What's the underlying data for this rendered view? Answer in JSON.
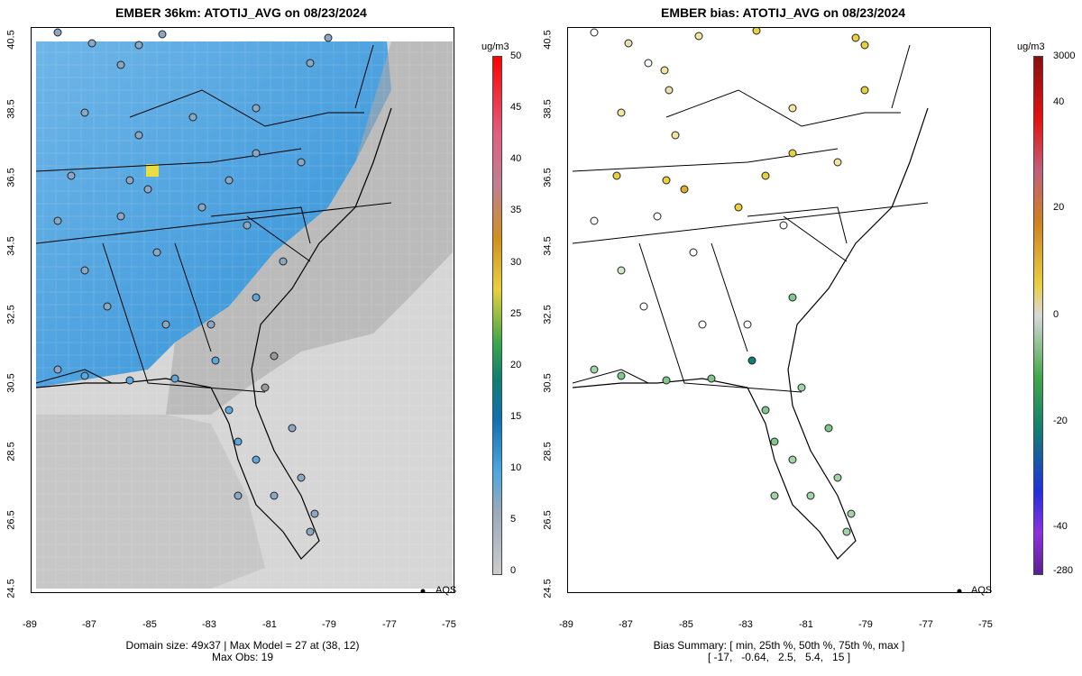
{
  "left_panel": {
    "title": "EMBER 36km: ATOTIJ_AVG on 08/23/2024",
    "legend_label": "AQS",
    "caption_line1": "Domain size: 49x37 | Max Model = 27 at (38, 12)",
    "caption_line2": "Max Obs: 19",
    "colorbar_unit": "ug/m3",
    "colorbar_ticks": [
      "50",
      "45",
      "40",
      "35",
      "30",
      "25",
      "20",
      "15",
      "10",
      "5",
      "0"
    ]
  },
  "right_panel": {
    "title": "EMBER bias: ATOTIJ_AVG on 08/23/2024",
    "legend_label": "AQS",
    "caption_line1": "Bias Summary: [ min, 25th %, 50th %, 75th %, max ]",
    "caption_line2": "[ -17,   -0.64,   2.5,   5.4,   15 ]",
    "colorbar_unit": "ug/m3",
    "colorbar_ticks": [
      "3000",
      "40",
      "20",
      "0",
      "-20",
      "-40",
      "-280"
    ]
  },
  "axes": {
    "x_ticks": [
      "-89",
      "-87",
      "-85",
      "-83",
      "-81",
      "-79",
      "-77",
      "-75"
    ],
    "y_ticks": [
      "40.5",
      "38.5",
      "36.5",
      "34.5",
      "32.5",
      "30.5",
      "28.5",
      "26.5",
      "24.5"
    ]
  },
  "colors": {
    "model_high": "#2f8fd6",
    "model_low": "#d8d8d8",
    "bias_pos": "#e8c840",
    "bias_neg": "#7fc88a"
  },
  "chart_data": [
    {
      "type": "heatmap",
      "title": "EMBER 36km: ATOTIJ_AVG on 08/23/2024",
      "xlim": [
        -89,
        -75
      ],
      "ylim": [
        24.5,
        40.5
      ],
      "colorbar_range": [
        0,
        50
      ],
      "unit": "ug/m3",
      "domain_size": "49x37",
      "max_model": 27,
      "max_model_location": [
        38,
        12
      ],
      "max_obs": 19
    },
    {
      "type": "scatter",
      "title": "EMBER bias: ATOTIJ_AVG on 08/23/2024",
      "xlim": [
        -89,
        -75
      ],
      "ylim": [
        24.5,
        40.5
      ],
      "unit": "ug/m3",
      "bias_summary": {
        "min": -17,
        "p25": -0.64,
        "p50": 2.5,
        "p75": 5.4,
        "max": 15
      }
    }
  ]
}
